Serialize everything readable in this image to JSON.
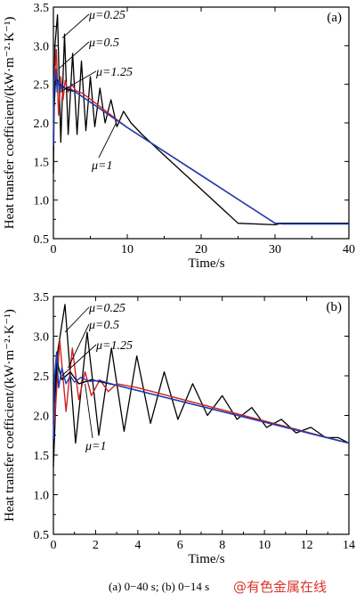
{
  "chart_data": [
    {
      "type": "line",
      "panel_label": "(a)",
      "xlabel": "Time/s",
      "ylabel": "Heat transfer coefficient/(kW·m⁻²·K⁻¹)",
      "xlim": [
        0,
        40
      ],
      "ylim": [
        0.5,
        3.5
      ],
      "xticks": [
        0,
        10,
        20,
        30,
        40
      ],
      "yticks": [
        0.5,
        1.0,
        1.5,
        2.0,
        2.5,
        3.0,
        3.5
      ],
      "xtick_labels": [
        "0",
        "10",
        "20",
        "30",
        "40"
      ],
      "ytick_labels": [
        "0.5",
        "1.0",
        "1.5",
        "2.0",
        "2.5",
        "3.0",
        "3.5"
      ],
      "series": [
        {
          "name": "μ=0.25",
          "color": "#000000",
          "x": [
            0,
            0.2,
            0.55,
            1.0,
            1.5,
            2.0,
            2.6,
            3.2,
            3.8,
            4.4,
            5.0,
            5.6,
            6.3,
            7.0,
            7.8,
            8.6,
            9.5,
            10.5,
            12,
            15,
            20,
            25,
            30,
            31,
            40
          ],
          "y": [
            1.35,
            3.0,
            3.4,
            1.75,
            3.15,
            1.85,
            2.9,
            1.85,
            2.8,
            1.9,
            2.6,
            1.95,
            2.45,
            2.0,
            2.3,
            1.95,
            2.15,
            2.0,
            1.85,
            1.58,
            1.14,
            0.7,
            0.68,
            0.7,
            0.7
          ]
        },
        {
          "name": "μ=0.5",
          "color": "#cc2222",
          "x": [
            0,
            0.15,
            0.4,
            0.7,
            1.0,
            1.3,
            1.6,
            2.0,
            2.5,
            3.0,
            4.0,
            10,
            20,
            30,
            31,
            40
          ],
          "y": [
            1.8,
            2.6,
            2.95,
            2.1,
            2.6,
            2.3,
            2.55,
            2.4,
            2.5,
            2.42,
            2.38,
            1.94,
            1.32,
            0.7,
            0.7,
            0.7
          ]
        },
        {
          "name": "μ=1",
          "color": "#000000",
          "x": [
            0,
            0.3,
            0.8,
            1.5,
            3,
            10,
            20,
            30,
            31,
            40
          ],
          "y": [
            2.0,
            2.6,
            2.5,
            2.45,
            2.4,
            1.94,
            1.32,
            0.7,
            0.7,
            0.7
          ]
        },
        {
          "name": "μ=1.25",
          "color": "#1f3fbf",
          "x": [
            0,
            0.08,
            0.2,
            0.35,
            0.5,
            0.7,
            0.9,
            1.2,
            1.5,
            2.0,
            3,
            10,
            20,
            30,
            31,
            40
          ],
          "y": [
            1.7,
            2.6,
            2.55,
            2.7,
            2.4,
            2.55,
            2.42,
            2.5,
            2.45,
            2.46,
            2.4,
            1.94,
            1.32,
            0.7,
            0.69,
            0.69
          ]
        }
      ],
      "annotations": [
        "μ=0.25",
        "μ=0.5",
        "μ=1.25",
        "μ=1"
      ]
    },
    {
      "type": "line",
      "panel_label": "(b)",
      "xlabel": "Time/s",
      "ylabel": "Heat transfer coefficient/(kW·m⁻²·K⁻¹)",
      "xlim": [
        0,
        14
      ],
      "ylim": [
        0.5,
        3.5
      ],
      "xticks": [
        0,
        2,
        4,
        6,
        8,
        10,
        12,
        14
      ],
      "yticks": [
        0.5,
        1.0,
        1.5,
        2.0,
        2.5,
        3.0,
        3.5
      ],
      "xtick_labels": [
        "0",
        "2",
        "4",
        "6",
        "8",
        "10",
        "12",
        "14"
      ],
      "ytick_labels": [
        "0.5",
        "1.0",
        "1.5",
        "2.0",
        "2.5",
        "3.0",
        "3.5"
      ],
      "series": [
        {
          "name": "μ=0.25",
          "color": "#000000",
          "x": [
            0,
            0.2,
            0.55,
            1.05,
            1.6,
            2.15,
            2.75,
            3.35,
            3.95,
            4.6,
            5.25,
            5.9,
            6.6,
            7.3,
            8.0,
            8.7,
            9.4,
            10.1,
            10.8,
            11.5,
            12.2,
            12.9,
            13.5,
            14
          ],
          "y": [
            1.35,
            2.8,
            3.4,
            1.65,
            3.05,
            1.75,
            2.85,
            1.8,
            2.75,
            1.9,
            2.55,
            1.95,
            2.4,
            2.0,
            2.25,
            1.95,
            2.1,
            1.85,
            1.95,
            1.78,
            1.85,
            1.72,
            1.72,
            1.65
          ]
        },
        {
          "name": "μ=0.5",
          "color": "#cc2222",
          "x": [
            0,
            0.1,
            0.3,
            0.6,
            0.9,
            1.2,
            1.5,
            1.8,
            2.2,
            2.6,
            3.0,
            4,
            14
          ],
          "y": [
            1.8,
            2.1,
            2.95,
            2.05,
            2.85,
            2.2,
            2.55,
            2.25,
            2.45,
            2.3,
            2.4,
            2.35,
            1.65
          ]
        },
        {
          "name": "μ=1",
          "color": "#000000",
          "x": [
            0,
            0.15,
            0.4,
            0.8,
            1.2,
            1.8,
            3,
            14
          ],
          "y": [
            1.9,
            2.7,
            2.45,
            2.55,
            2.4,
            2.45,
            2.38,
            1.65
          ]
        },
        {
          "name": "μ=1.25",
          "color": "#1f3fbf",
          "x": [
            0,
            0.06,
            0.15,
            0.25,
            0.4,
            0.6,
            0.8,
            1.0,
            1.3,
            1.7,
            2.2,
            3,
            14
          ],
          "y": [
            1.7,
            2.5,
            2.8,
            2.35,
            2.6,
            2.4,
            2.5,
            2.42,
            2.48,
            2.43,
            2.44,
            2.38,
            1.65
          ]
        }
      ],
      "annotations": [
        "μ=0.25",
        "μ=0.5",
        "μ=1.25",
        "μ=1"
      ]
    }
  ],
  "caption": "(a) 0−40 s; (b) 0−14 s",
  "watermark": "@有色金属在线"
}
